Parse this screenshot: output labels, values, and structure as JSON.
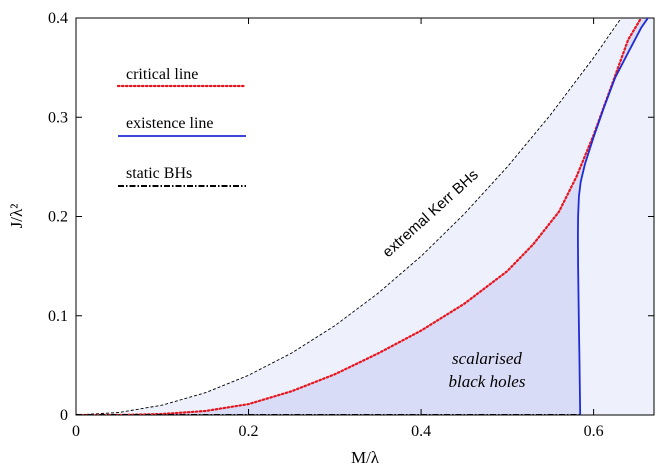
{
  "chart_data": {
    "type": "line",
    "xlabel": "M/λ",
    "ylabel": "J/λ²",
    "xlim": [
      0,
      0.67
    ],
    "ylim": [
      0,
      0.4
    ],
    "xticks": [
      0,
      0.2,
      0.4,
      0.6
    ],
    "xtick_labels": [
      "0",
      "0.2",
      "0.4",
      "0.6"
    ],
    "yticks": [
      0,
      0.1,
      0.2,
      0.3,
      0.4
    ],
    "ytick_labels": [
      "0",
      "0.1",
      "0.2",
      "0.3",
      "0.4"
    ],
    "grid": false,
    "legend_position": "top-left",
    "colors": {
      "critical": "#e8141e",
      "existence": "#1f2bd6",
      "static": "#000000",
      "kerr": "#000000",
      "region_outer": "#eef0fb",
      "region_inner": "#d9dcf6"
    },
    "series": [
      {
        "name": "critical line",
        "style": "dotted",
        "x": [
          0,
          0.05,
          0.1,
          0.15,
          0.2,
          0.25,
          0.3,
          0.35,
          0.4,
          0.45,
          0.5,
          0.53,
          0.56,
          0.58,
          0.6,
          0.62,
          0.64,
          0.655
        ],
        "y": [
          0,
          0,
          0.001,
          0.004,
          0.011,
          0.024,
          0.041,
          0.062,
          0.085,
          0.112,
          0.145,
          0.172,
          0.205,
          0.24,
          0.282,
          0.33,
          0.378,
          0.4
        ]
      },
      {
        "name": "existence line",
        "style": "solid",
        "x": [
          0.5845,
          0.584,
          0.5835,
          0.583,
          0.5825,
          0.582,
          0.5818,
          0.582,
          0.583,
          0.585,
          0.59,
          0.6,
          0.612,
          0.625,
          0.64,
          0.655,
          0.667
        ],
        "y": [
          0.0,
          0.03,
          0.06,
          0.09,
          0.12,
          0.15,
          0.18,
          0.2,
          0.22,
          0.235,
          0.253,
          0.28,
          0.31,
          0.34,
          0.365,
          0.39,
          0.405
        ]
      },
      {
        "name": "static BHs",
        "style": "dash-dot",
        "x": [
          0,
          0.5845
        ],
        "y": [
          0,
          0
        ]
      }
    ],
    "reference_curve": {
      "label": "extremal Kerr BHs",
      "style": "dashed",
      "x": [
        0,
        0.05,
        0.1,
        0.15,
        0.2,
        0.25,
        0.3,
        0.35,
        0.4,
        0.45,
        0.5,
        0.55,
        0.6,
        0.632
      ],
      "y": [
        0,
        0.0025,
        0.01,
        0.0225,
        0.04,
        0.0625,
        0.09,
        0.1225,
        0.16,
        0.2025,
        0.25,
        0.3025,
        0.36,
        0.4
      ]
    },
    "annotations": [
      {
        "text_line1": "scalarised",
        "text_line2": "black holes",
        "x": 0.487,
        "y": 0.055
      }
    ]
  }
}
